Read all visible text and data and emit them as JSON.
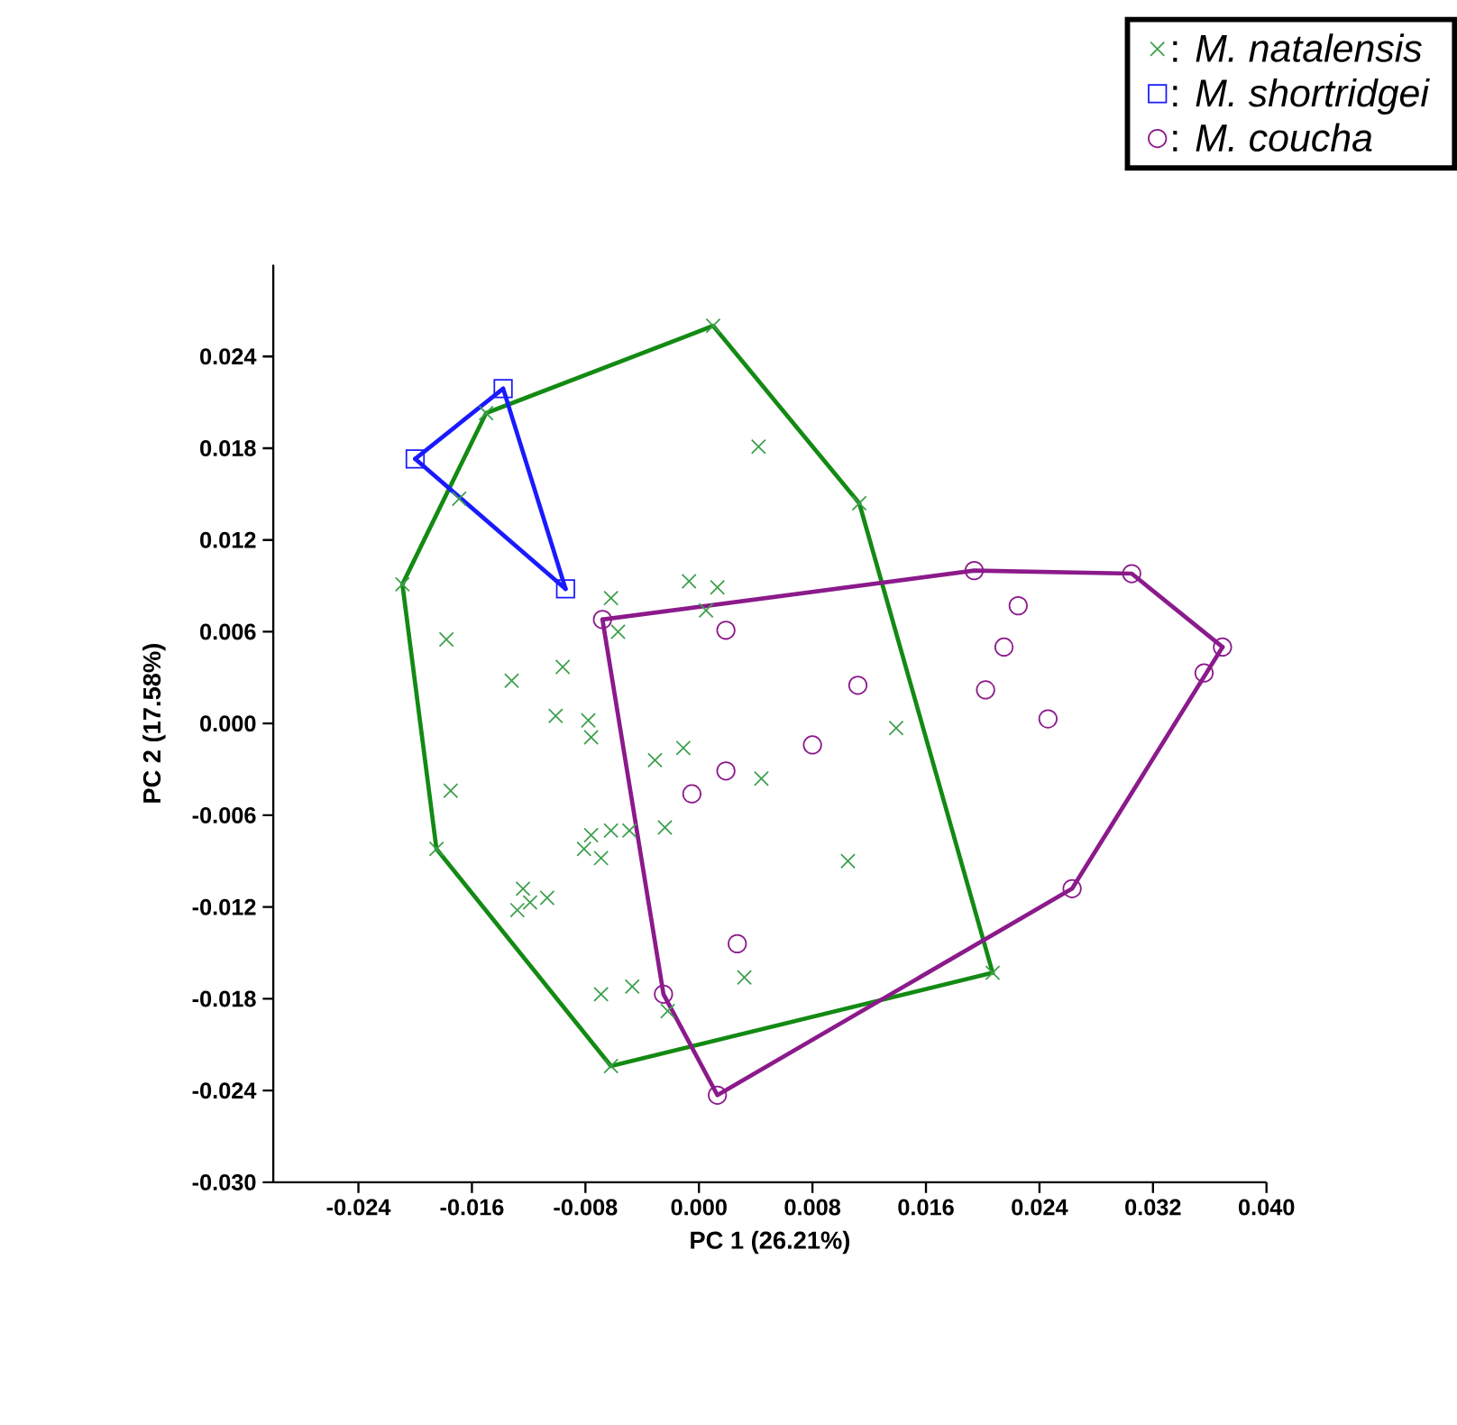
{
  "chart_data": {
    "type": "scatter",
    "xlabel": "PC 1 (26.21%)",
    "ylabel": "PC 2 (17.58%)",
    "xlim": [
      -0.03,
      0.04
    ],
    "ylim": [
      -0.03,
      0.03
    ],
    "xticks": [
      {
        "value": -0.024,
        "label": "-0.024"
      },
      {
        "value": -0.016,
        "label": "-0.016"
      },
      {
        "value": -0.008,
        "label": "-0.008"
      },
      {
        "value": 0.0,
        "label": "0.000"
      },
      {
        "value": 0.008,
        "label": "0.008"
      },
      {
        "value": 0.016,
        "label": "0.016"
      },
      {
        "value": 0.024,
        "label": "0.024"
      },
      {
        "value": 0.032,
        "label": "0.032"
      },
      {
        "value": 0.04,
        "label": "0.040"
      }
    ],
    "yticks": [
      {
        "value": -0.03,
        "label": "-0.030"
      },
      {
        "value": -0.024,
        "label": "-0.024"
      },
      {
        "value": -0.018,
        "label": "-0.018"
      },
      {
        "value": -0.012,
        "label": "-0.012"
      },
      {
        "value": -0.006,
        "label": "-0.006"
      },
      {
        "value": 0.0,
        "label": "0.000"
      },
      {
        "value": 0.006,
        "label": "0.006"
      },
      {
        "value": 0.012,
        "label": "0.012"
      },
      {
        "value": 0.018,
        "label": "0.018"
      },
      {
        "value": 0.024,
        "label": "0.024"
      }
    ],
    "grid": false,
    "legend": "top right",
    "series": [
      {
        "name": ": *M. natalensis*",
        "color": "#3c9f4c",
        "marker": "cross",
        "x": [
          0.001,
          0.0113,
          0.0207,
          -0.0062,
          -0.0185,
          -0.0209,
          -0.015,
          -0.0169,
          0.0042,
          -0.0178,
          -0.0132,
          -0.0096,
          -0.0101,
          -0.0078,
          -0.0076,
          -0.0062,
          -0.0057,
          -0.0007,
          0.0013,
          0.0005,
          -0.0031,
          -0.0011,
          0.0044,
          0.0139,
          0.0105,
          -0.0175,
          -0.0024,
          -0.0049,
          -0.0062,
          -0.0076,
          -0.0069,
          -0.0081,
          -0.0124,
          -0.0119,
          -0.0107,
          -0.0128,
          -0.0069,
          -0.0047,
          -0.0022,
          0.0032
        ],
        "values": [
          0.026,
          0.0144,
          -0.0163,
          -0.0224,
          -0.0082,
          0.0091,
          0.0203,
          0.0147,
          0.0181,
          0.0055,
          0.0028,
          0.0037,
          0.0005,
          0.0002,
          -0.0009,
          0.0082,
          0.006,
          0.0093,
          0.0089,
          0.0074,
          -0.0024,
          -0.0016,
          -0.0036,
          -0.0003,
          -0.009,
          -0.0044,
          -0.0068,
          -0.007,
          -0.007,
          -0.0073,
          -0.0088,
          -0.0082,
          -0.0108,
          -0.0117,
          -0.0114,
          -0.0122,
          -0.0177,
          -0.0172,
          -0.0188,
          -0.0166
        ]
      },
      {
        "name": ": *M. shortridgei*",
        "color": "#1a1aff",
        "marker": "square",
        "x": [
          -0.0138,
          -0.02,
          -0.0094
        ],
        "values": [
          0.0219,
          0.0173,
          0.0088
        ]
      },
      {
        "name": ": *M. coucha*",
        "color": "#8b1a8b",
        "marker": "circle",
        "x": [
          -0.0068,
          0.0194,
          0.0305,
          0.0369,
          0.0356,
          0.0263,
          0.0013,
          -0.0025,
          0.0019,
          0.0225,
          0.0215,
          0.0202,
          0.0246,
          0.0112,
          0.008,
          0.0019,
          -0.0005,
          0.0027
        ],
        "values": [
          0.0068,
          0.01,
          0.0098,
          0.005,
          0.0033,
          -0.0108,
          -0.0243,
          -0.0177,
          0.0061,
          0.0077,
          0.005,
          0.0022,
          0.0003,
          0.0025,
          -0.0014,
          -0.0031,
          -0.0046,
          -0.0144
        ]
      },
      {
        "type": "line",
        "color": "#138a13",
        "x": [
          -0.0209,
          -0.015,
          0.001,
          0.0113,
          0.0207
        ],
        "values": [
          0.0091,
          0.0203,
          0.026,
          0.0144,
          -0.0163
        ]
      },
      {
        "type": "line",
        "color": "#138a13",
        "x": [
          -0.0209,
          -0.0185,
          -0.0062,
          0.0207
        ],
        "values": [
          0.0091,
          -0.0082,
          -0.0224,
          -0.0163
        ]
      },
      {
        "type": "line",
        "color": "#1a1aff",
        "x": [
          -0.02,
          -0.0138,
          -0.0094
        ],
        "values": [
          0.0173,
          0.0219,
          0.0088
        ]
      },
      {
        "type": "line",
        "color": "#1a1aff",
        "x": [
          -0.02,
          -0.0094
        ],
        "values": [
          0.0173,
          0.0088
        ]
      },
      {
        "type": "line",
        "color": "#8b1a8b",
        "x": [
          -0.0068,
          0.0194,
          0.0305,
          0.0369
        ],
        "values": [
          0.0068,
          0.01,
          0.0098,
          0.005
        ]
      },
      {
        "type": "line",
        "color": "#8b1a8b",
        "x": [
          -0.0068,
          -0.0025,
          0.0013,
          0.0263,
          0.0369
        ],
        "values": [
          0.0068,
          -0.0177,
          -0.0243,
          -0.0108,
          0.005
        ]
      }
    ]
  }
}
